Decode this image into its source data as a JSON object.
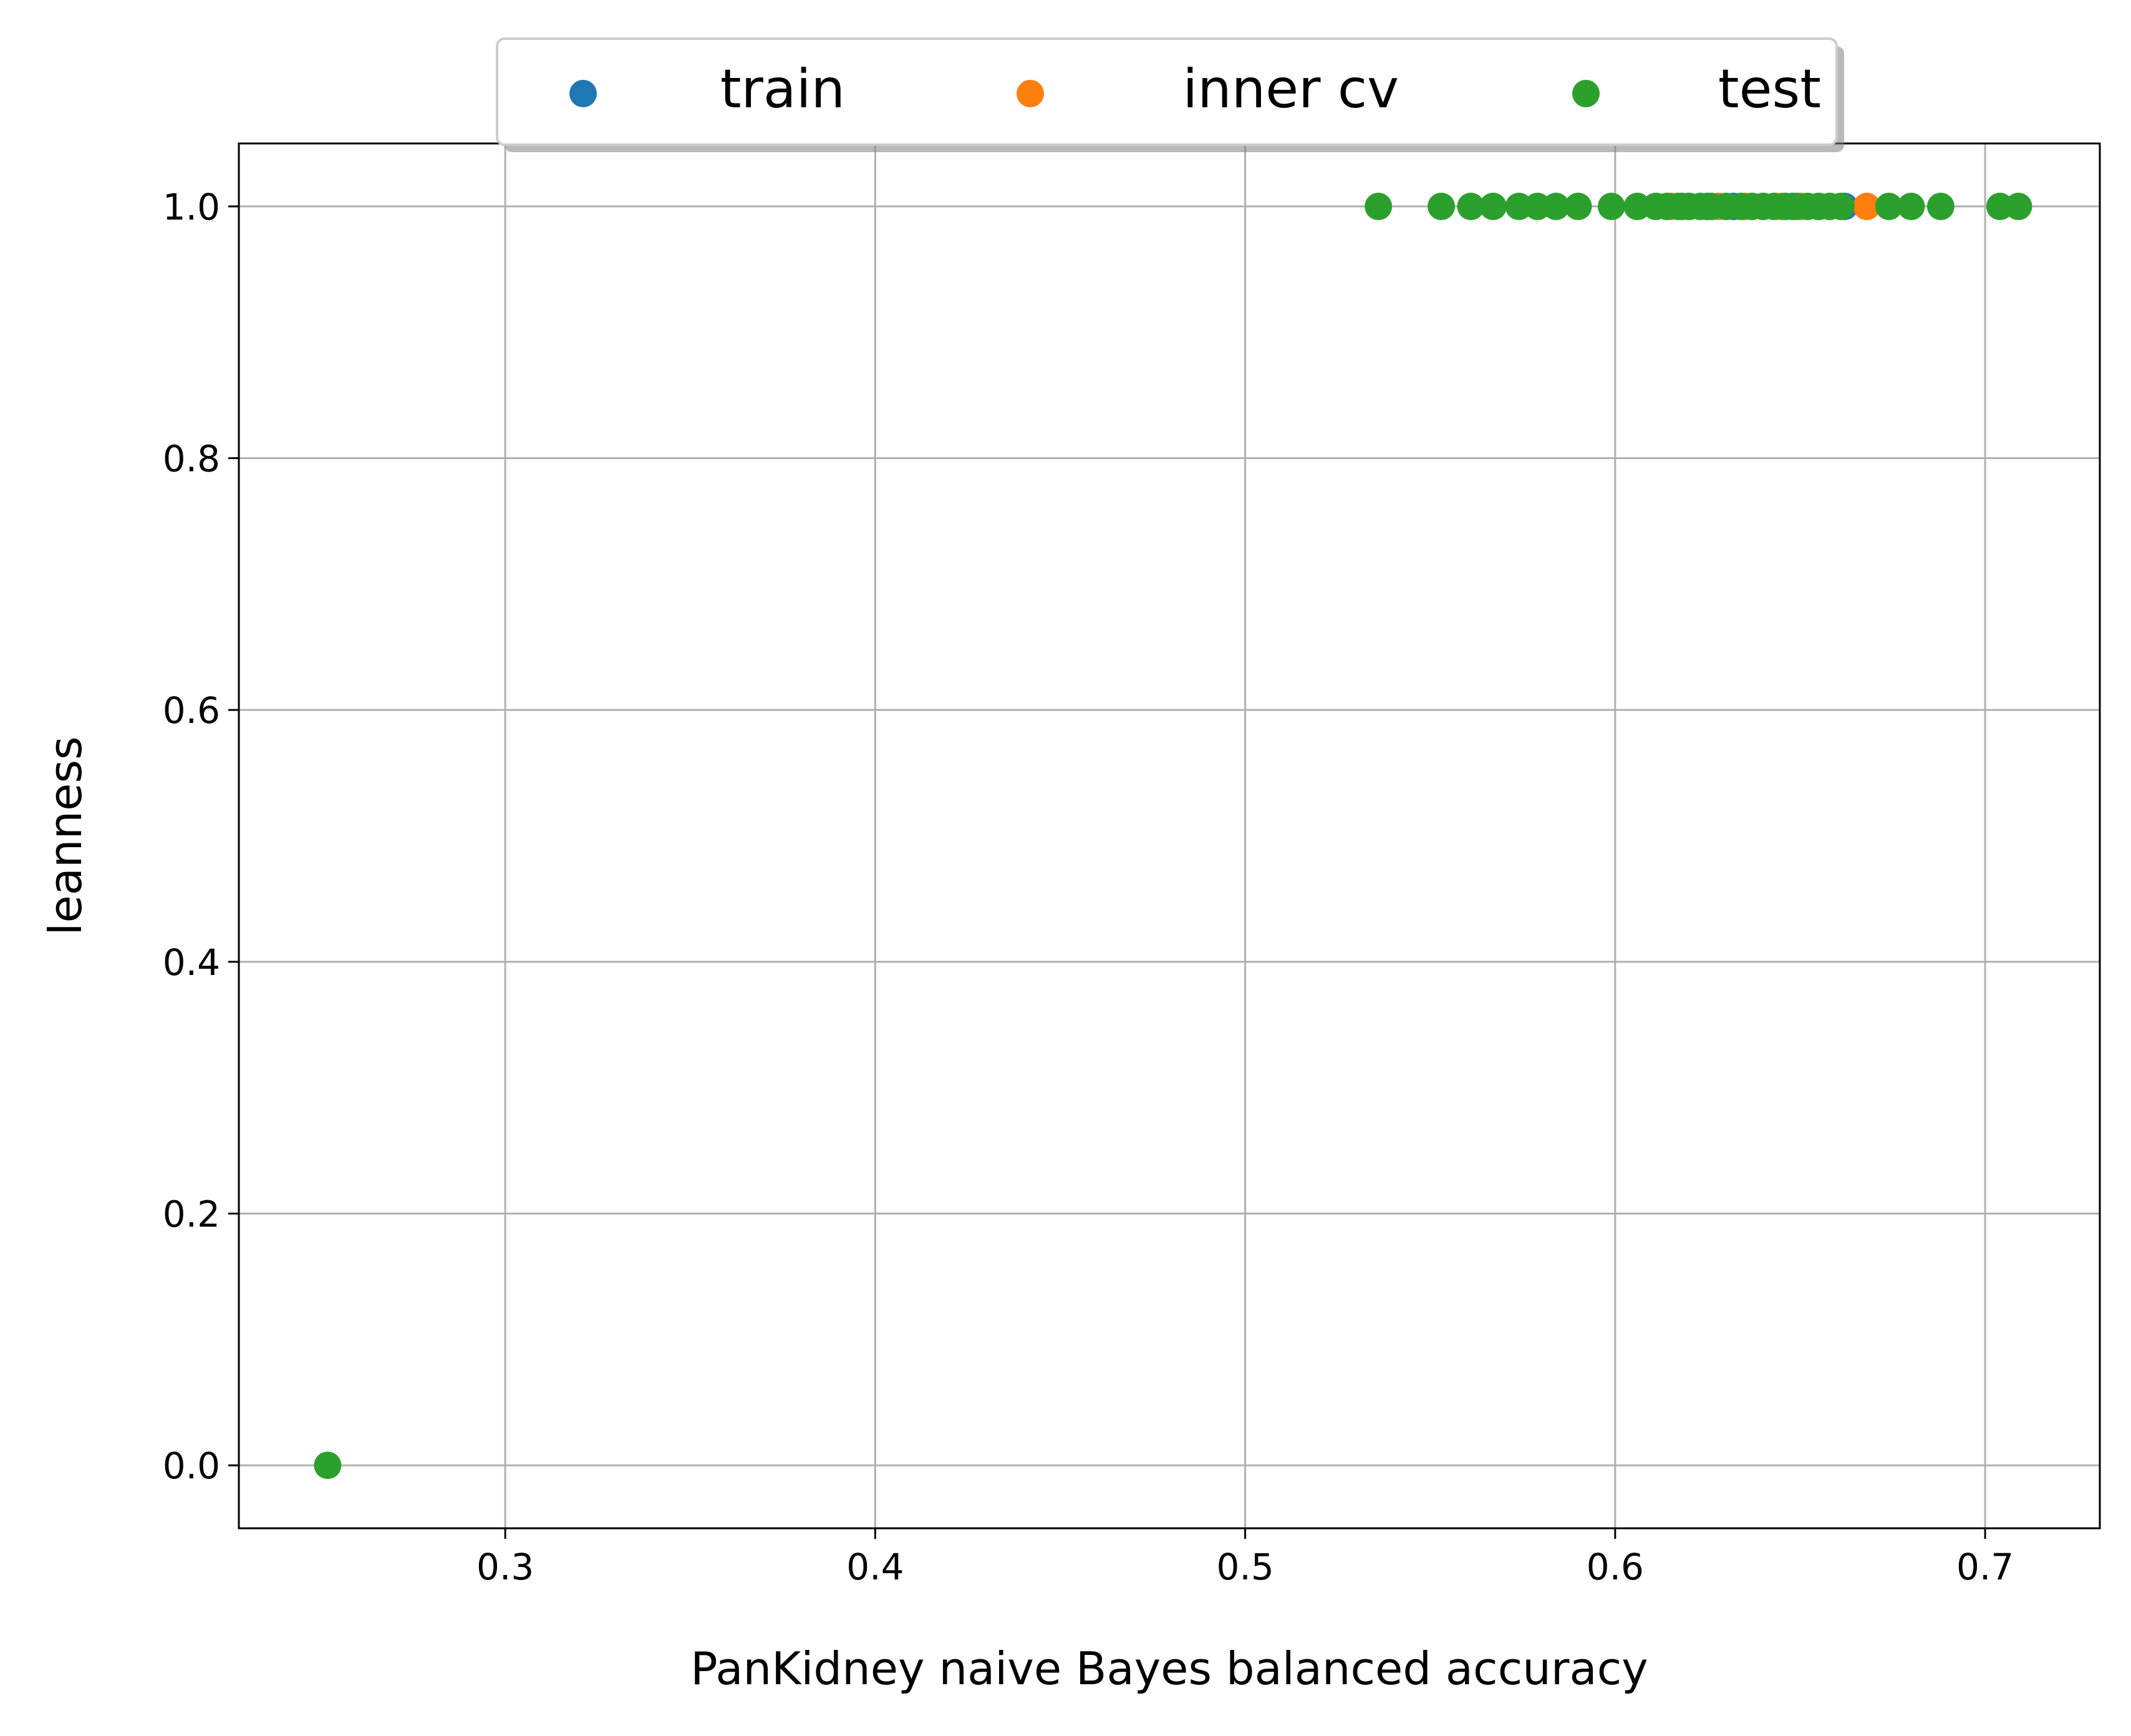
{
  "chart_data": {
    "type": "scatter",
    "xlabel": "PanKidney naive Bayes balanced accuracy",
    "ylabel": "leanness",
    "xlim": [
      0.228,
      0.731
    ],
    "ylim": [
      -0.05,
      1.05
    ],
    "x_ticks": [
      0.3,
      0.4,
      0.5,
      0.6,
      0.7
    ],
    "x_tick_labels": [
      "0.3",
      "0.4",
      "0.5",
      "0.6",
      "0.7"
    ],
    "y_ticks": [
      0.0,
      0.2,
      0.4,
      0.6,
      0.8,
      1.0
    ],
    "y_tick_labels": [
      "0.0",
      "0.2",
      "0.4",
      "0.6",
      "0.8",
      "1.0"
    ],
    "grid": true,
    "legend_position": "top-center, above plot",
    "series": [
      {
        "name": "train",
        "color": "#1f77b4",
        "points": [
          {
            "x": 0.618,
            "y": 1.0
          },
          {
            "x": 0.625,
            "y": 1.0
          },
          {
            "x": 0.632,
            "y": 1.0
          },
          {
            "x": 0.64,
            "y": 1.0
          },
          {
            "x": 0.648,
            "y": 1.0
          },
          {
            "x": 0.655,
            "y": 1.0
          },
          {
            "x": 0.662,
            "y": 1.0
          }
        ]
      },
      {
        "name": "inner cv",
        "color": "#ff7f0e",
        "points": [
          {
            "x": 0.615,
            "y": 1.0
          },
          {
            "x": 0.62,
            "y": 1.0
          },
          {
            "x": 0.628,
            "y": 1.0
          },
          {
            "x": 0.635,
            "y": 1.0
          },
          {
            "x": 0.645,
            "y": 1.0
          },
          {
            "x": 0.65,
            "y": 1.0
          },
          {
            "x": 0.658,
            "y": 1.0
          },
          {
            "x": 0.668,
            "y": 1.0
          }
        ]
      },
      {
        "name": "test",
        "color": "#2ca02c",
        "points": [
          {
            "x": 0.252,
            "y": 0.0
          },
          {
            "x": 0.536,
            "y": 1.0
          },
          {
            "x": 0.553,
            "y": 1.0
          },
          {
            "x": 0.561,
            "y": 1.0
          },
          {
            "x": 0.567,
            "y": 1.0
          },
          {
            "x": 0.574,
            "y": 1.0
          },
          {
            "x": 0.579,
            "y": 1.0
          },
          {
            "x": 0.584,
            "y": 1.0
          },
          {
            "x": 0.59,
            "y": 1.0
          },
          {
            "x": 0.599,
            "y": 1.0
          },
          {
            "x": 0.606,
            "y": 1.0
          },
          {
            "x": 0.611,
            "y": 1.0
          },
          {
            "x": 0.614,
            "y": 1.0
          },
          {
            "x": 0.617,
            "y": 1.0
          },
          {
            "x": 0.62,
            "y": 1.0
          },
          {
            "x": 0.623,
            "y": 1.0
          },
          {
            "x": 0.626,
            "y": 1.0
          },
          {
            "x": 0.63,
            "y": 1.0
          },
          {
            "x": 0.634,
            "y": 1.0
          },
          {
            "x": 0.637,
            "y": 1.0
          },
          {
            "x": 0.64,
            "y": 1.0
          },
          {
            "x": 0.643,
            "y": 1.0
          },
          {
            "x": 0.646,
            "y": 1.0
          },
          {
            "x": 0.649,
            "y": 1.0
          },
          {
            "x": 0.652,
            "y": 1.0
          },
          {
            "x": 0.655,
            "y": 1.0
          },
          {
            "x": 0.658,
            "y": 1.0
          },
          {
            "x": 0.661,
            "y": 1.0
          },
          {
            "x": 0.674,
            "y": 1.0
          },
          {
            "x": 0.68,
            "y": 1.0
          },
          {
            "x": 0.688,
            "y": 1.0
          },
          {
            "x": 0.704,
            "y": 1.0
          },
          {
            "x": 0.709,
            "y": 1.0
          }
        ]
      }
    ]
  }
}
